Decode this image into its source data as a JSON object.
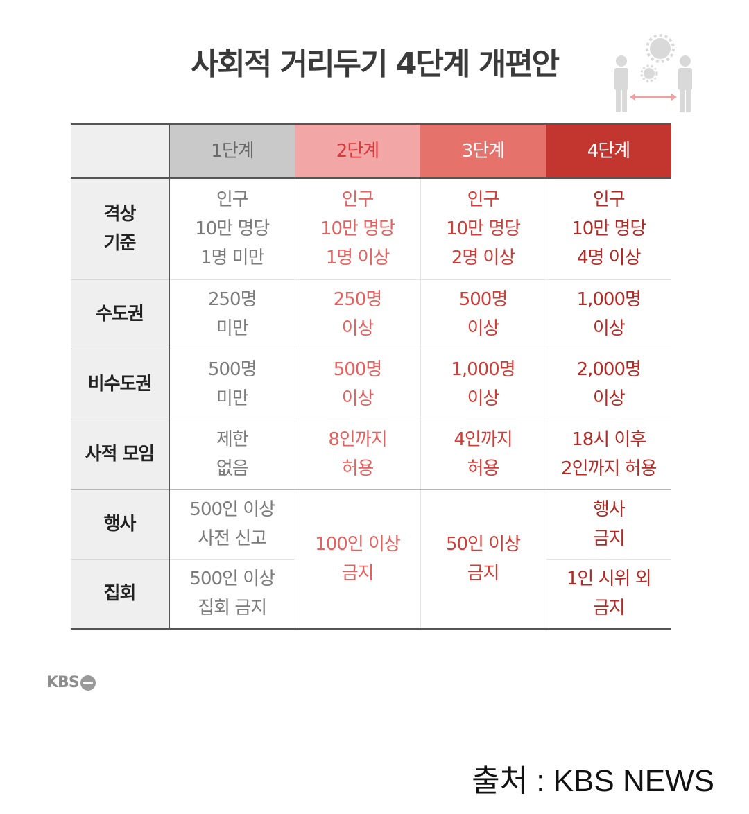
{
  "title": "사회적 거리두기 4단계 개편안",
  "table": {
    "headers": [
      "1단계",
      "2단계",
      "3단계",
      "4단계"
    ],
    "rows": [
      {
        "label": [
          "격상",
          "기준"
        ],
        "cells": [
          [
            "인구",
            "10만 명당",
            "1명 미만"
          ],
          [
            "인구",
            "10만 명당",
            "1명 이상"
          ],
          [
            "인구",
            "10만 명당",
            "2명 이상"
          ],
          [
            "인구",
            "10만 명당",
            "4명 이상"
          ]
        ]
      },
      {
        "label": [
          "수도권"
        ],
        "cells": [
          [
            "250명",
            "미만"
          ],
          [
            "250명",
            "이상"
          ],
          [
            "500명",
            "이상"
          ],
          [
            "1,000명",
            "이상"
          ]
        ]
      },
      {
        "label": [
          "비수도권"
        ],
        "cells": [
          [
            "500명",
            "미만"
          ],
          [
            "500명",
            "이상"
          ],
          [
            "1,000명",
            "이상"
          ],
          [
            "2,000명",
            "이상"
          ]
        ]
      },
      {
        "label": [
          "사적 모임"
        ],
        "cells": [
          [
            "제한",
            "없음"
          ],
          [
            "8인까지",
            "허용"
          ],
          [
            "4인까지",
            "허용"
          ],
          [
            "18시 이후",
            "2인까지 허용"
          ]
        ]
      },
      {
        "label": [
          "행사"
        ],
        "cells": [
          [
            "500인 이상",
            "사전 신고"
          ],
          [
            "100인 이상",
            "금지"
          ],
          [
            "50인 이상",
            "금지"
          ],
          [
            "행사",
            "금지"
          ]
        ]
      },
      {
        "label": [
          "집회"
        ],
        "cells": [
          [
            "500인 이상",
            "집회 금지"
          ],
          [
            "1인 시위 외",
            "금지"
          ]
        ]
      }
    ]
  },
  "logo": {
    "text": "KBS"
  },
  "source": "출처 : KBS NEWS",
  "colors": {
    "stage1": "#c9c9c9",
    "stage2": "#f3a6a6",
    "stage3": "#e6726c",
    "stage4": "#c3352f"
  },
  "icons": [
    "people-distancing-icon",
    "virus-icon"
  ]
}
